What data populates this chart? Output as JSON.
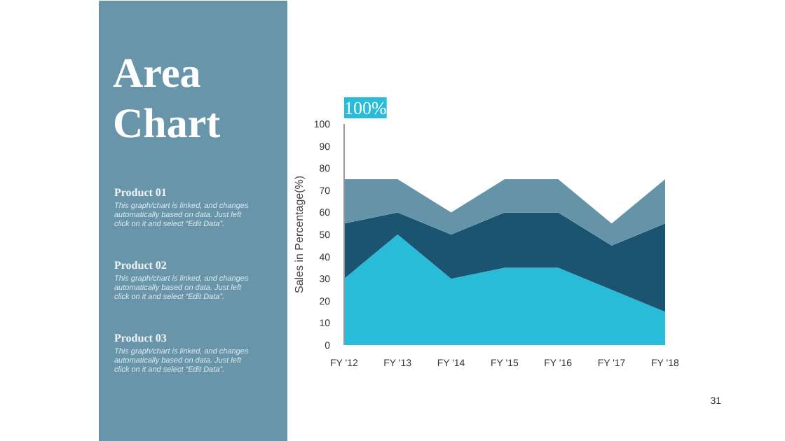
{
  "chart_data": {
    "type": "area",
    "stacked": true,
    "title": "Area Chart",
    "ylabel": "Sales in Percentage(%)",
    "categories": [
      "FY '12",
      "FY '13",
      "FY '14",
      "FY '15",
      "FY '16",
      "FY '17",
      "FY '18"
    ],
    "series": [
      {
        "color": "#29bcd8",
        "values": [
          30,
          50,
          30,
          35,
          35,
          25,
          15
        ]
      },
      {
        "color": "#1a5471",
        "values": [
          25,
          10,
          20,
          25,
          25,
          20,
          40
        ]
      },
      {
        "color": "#6594a8",
        "values": [
          20,
          15,
          10,
          15,
          15,
          10,
          20
        ]
      }
    ],
    "ylim": [
      0,
      100
    ],
    "yticks": [
      0,
      10,
      20,
      30,
      40,
      50,
      60,
      70,
      80,
      90,
      100
    ],
    "grid": false,
    "annotations": [
      "Product 01",
      "This graph/chart is linked, and changes automatically based on data. Just left click on it and select “Edit Data”.",
      "Product 02",
      "This graph/chart is linked, and changes automatically based on data. Just left click on it and select “Edit Data”.",
      "Product 03",
      "This graph/chart is linked, and changes automatically based on data. Just left click on it and select “Edit Data”.",
      "100%",
      "31"
    ]
  }
}
